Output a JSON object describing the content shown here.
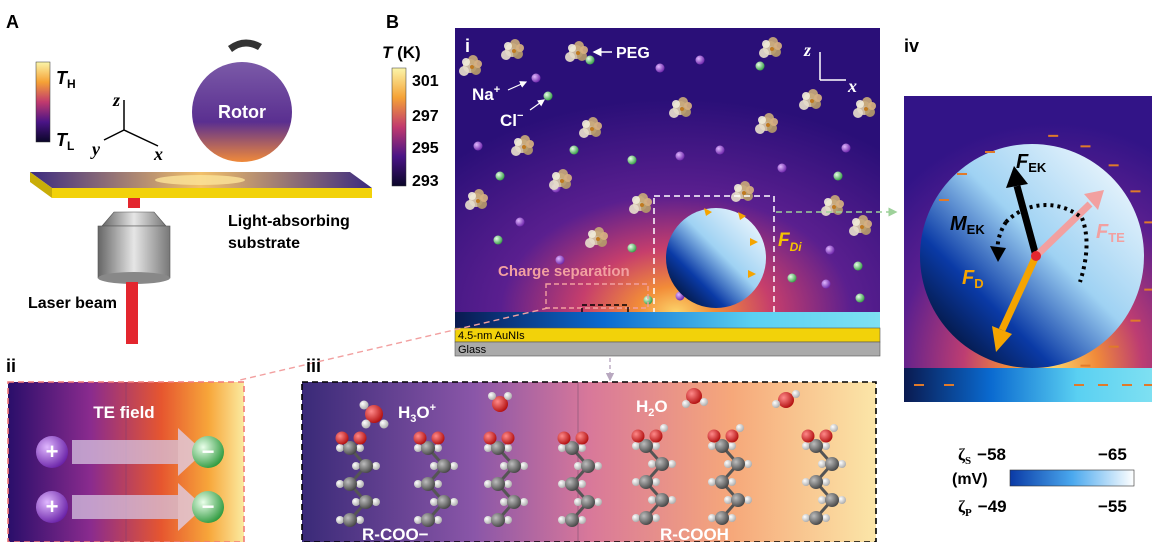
{
  "panel_a": {
    "letter": "A",
    "colorbar_top": "T",
    "colorbar_top_sub": "H",
    "colorbar_bottom": "T",
    "colorbar_bottom_sub": "L",
    "axis_z": "z",
    "axis_y": "y",
    "axis_x": "x",
    "rotor": "Rotor",
    "substrate_line1": "Light-absorbing",
    "substrate_line2": "substrate",
    "laser": "Laser beam"
  },
  "panel_b": {
    "letter": "B",
    "colorbar_title": "T",
    "colorbar_unit": " (K)",
    "colorbar_ticks": [
      "301",
      "297",
      "295",
      "293"
    ],
    "sub_i": "i",
    "peg": "PEG",
    "na": "Na",
    "na_sup": "+",
    "cl": "Cl",
    "cl_sup": "−",
    "axis_z": "z",
    "axis_x": "x",
    "fd": "F",
    "fd_sub": "Di",
    "charge_separation": "Charge separation",
    "aunis": "4.5-nm AuNIs",
    "glass": "Glass"
  },
  "panel_ii": {
    "label": "ii",
    "te_field": "TE field",
    "plus": "+",
    "minus": "−"
  },
  "panel_iii": {
    "label": "iii",
    "h3o": "H",
    "h3o_sub": "3",
    "h3o_rest": "O",
    "h3o_sup": "+",
    "h2o": "H",
    "h2o_sub": "2",
    "h2o_rest": "O",
    "rcoo": "R-COO−",
    "rcooh": "R-COOH"
  },
  "panel_iv": {
    "label": "iv",
    "f_ek": "F",
    "f_ek_sub": "EK",
    "m_ek": "M",
    "m_ek_sub": "EK",
    "f_te": "F",
    "f_te_sub": "TE",
    "f_d": "F",
    "f_d_sub": "D"
  },
  "zeta_legend": {
    "zeta_s": "ζ",
    "zeta_s_sub": "S",
    "zeta_s_min": "−58",
    "zeta_s_max": "−65",
    "unit": "(mV)",
    "zeta_p": "ζ",
    "zeta_p_sub": "P",
    "zeta_p_min": "−49",
    "zeta_p_max": "−55"
  },
  "colors": {
    "laser": "#e3262e",
    "gold": "#f2d20a",
    "accent_orange": "#f5a400",
    "accent_pink": "#f2a0a0",
    "peg_green": "#7fd98a",
    "ion_purple": "#9a4fd0"
  }
}
